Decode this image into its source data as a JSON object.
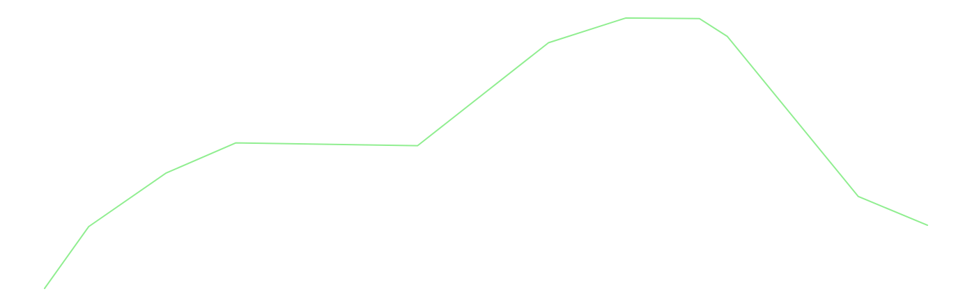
{
  "chart_data": {
    "type": "line",
    "title": "",
    "xlabel": "",
    "ylabel": "",
    "grid": false,
    "axes_visible": false,
    "x": [
      0,
      0.6,
      1.65,
      2.6,
      5.07,
      6.85,
      7.9,
      8.9,
      9.28,
      11.06,
      12
    ],
    "xlim": [
      0,
      12
    ],
    "ylim": [
      0,
      100
    ],
    "series": [
      {
        "color": "#90ee90",
        "values": [
          0,
          22.5,
          42,
          53,
          52,
          89.5,
          98.5,
          98.3,
          91.8,
          33.5,
          23
        ]
      }
    ]
  }
}
